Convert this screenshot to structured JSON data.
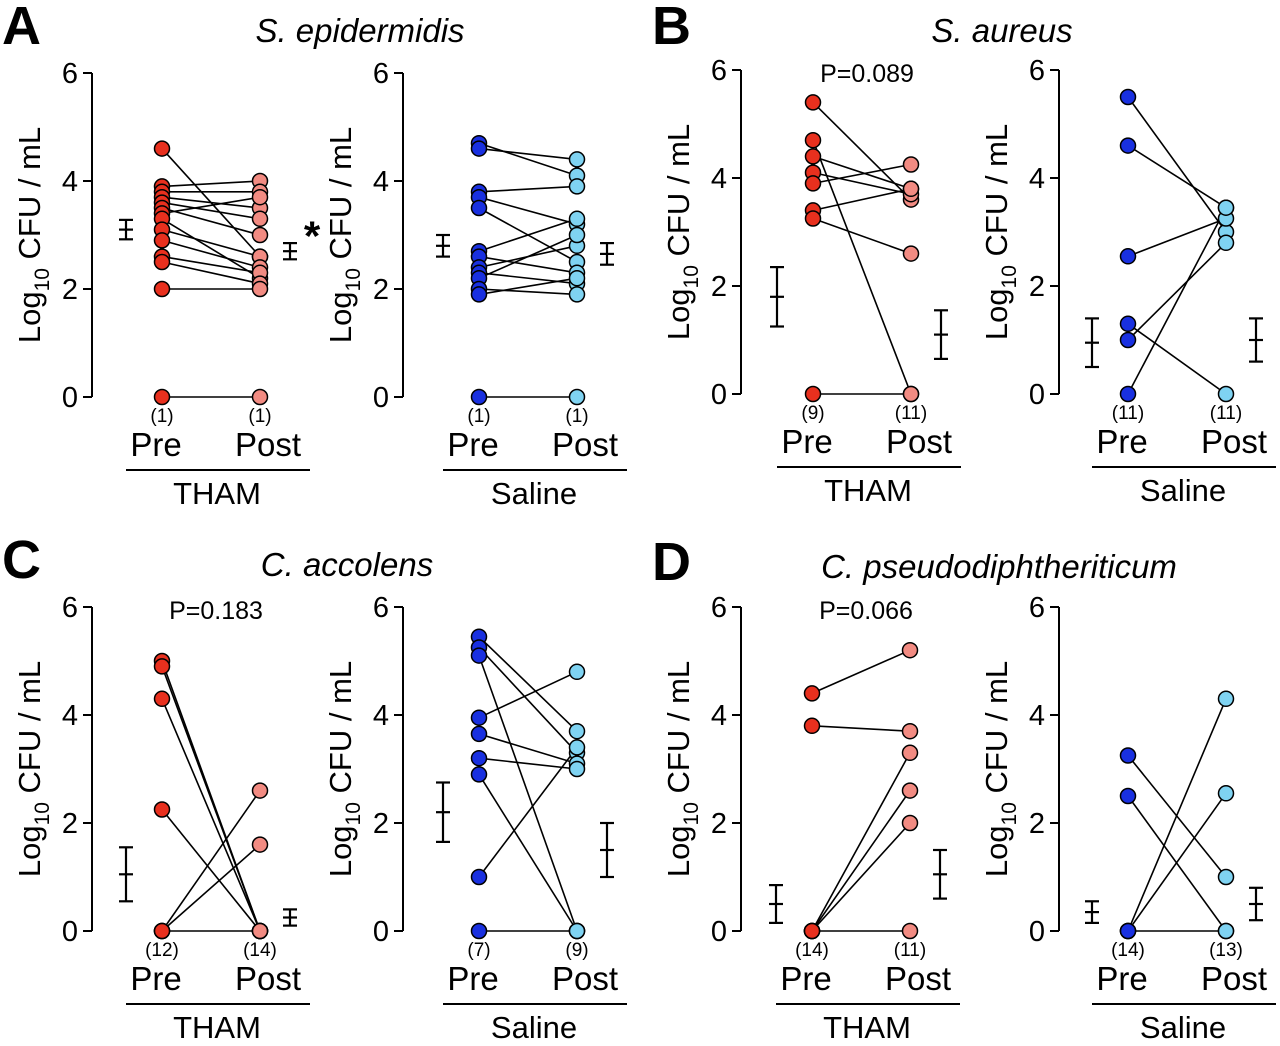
{
  "colors": {
    "tham_pre": "#e8301e",
    "tham_post": "#f28b82",
    "saline_pre": "#1930e0",
    "saline_post": "#7fd3f2",
    "line": "#000000"
  },
  "y_axis_label": {
    "main": "Log",
    "subscript": "10",
    "rest": " CFU / mL"
  },
  "x_tick_labels": [
    "Pre",
    "Post"
  ],
  "chart_data": [
    {
      "panel": "A",
      "title": "S. epidermidis",
      "type": "scatter",
      "ylim": [
        0,
        6
      ],
      "yticks": [
        0,
        2,
        4,
        6
      ],
      "groups": [
        {
          "name": "THAM",
          "counts": [
            "(1)",
            "(1)"
          ],
          "pvalue": "",
          "significance": "*",
          "pairs": [
            [
              4.6,
              2.6
            ],
            [
              3.9,
              4.0
            ],
            [
              3.8,
              3.8
            ],
            [
              3.7,
              3.5
            ],
            [
              3.6,
              3.3
            ],
            [
              3.5,
              3.0
            ],
            [
              3.4,
              3.7
            ],
            [
              3.3,
              2.2
            ],
            [
              3.1,
              2.6
            ],
            [
              2.9,
              2.4
            ],
            [
              2.6,
              2.3
            ],
            [
              2.5,
              2.1
            ],
            [
              2.0,
              2.0
            ],
            [
              0,
              0
            ]
          ],
          "pre_mean_sem": [
            3.1,
            0.18
          ],
          "post_mean_sem": [
            2.7,
            0.15
          ]
        },
        {
          "name": "Saline",
          "counts": [
            "(1)",
            "(1)"
          ],
          "pvalue": "",
          "significance": "",
          "pairs": [
            [
              4.7,
              4.1
            ],
            [
              4.6,
              4.4
            ],
            [
              3.8,
              3.9
            ],
            [
              3.7,
              3.2
            ],
            [
              3.5,
              2.5
            ],
            [
              2.7,
              3.3
            ],
            [
              2.6,
              2.3
            ],
            [
              2.4,
              2.8
            ],
            [
              2.3,
              2.1
            ],
            [
              2.2,
              3.0
            ],
            [
              2.0,
              1.9
            ],
            [
              1.9,
              2.2
            ],
            [
              0,
              0
            ]
          ],
          "pre_mean_sem": [
            2.8,
            0.2
          ],
          "post_mean_sem": [
            2.65,
            0.2
          ]
        }
      ]
    },
    {
      "panel": "B",
      "title": "S. aureus",
      "type": "scatter",
      "ylim": [
        0,
        6
      ],
      "yticks": [
        0,
        2,
        4,
        6
      ],
      "groups": [
        {
          "name": "THAM",
          "counts": [
            "(9)",
            "(11)"
          ],
          "pvalue": "P=0.089",
          "significance": "",
          "pairs": [
            [
              5.4,
              3.6
            ],
            [
              4.7,
              0
            ],
            [
              4.4,
              3.8
            ],
            [
              4.1,
              3.7
            ],
            [
              3.9,
              4.25
            ],
            [
              3.4,
              3.8
            ],
            [
              3.25,
              2.6
            ],
            [
              0,
              0
            ]
          ],
          "pre_mean_sem": [
            1.8,
            0.55
          ],
          "post_mean_sem": [
            1.1,
            0.45
          ]
        },
        {
          "name": "Saline",
          "counts": [
            "(11)",
            "(11)"
          ],
          "pvalue": "",
          "significance": "",
          "pairs": [
            [
              5.5,
              3.0
            ],
            [
              4.6,
              3.45
            ],
            [
              2.55,
              3.25
            ],
            [
              1.3,
              0
            ],
            [
              1.0,
              2.8
            ],
            [
              0,
              3.45
            ]
          ],
          "pre_mean_sem": [
            0.95,
            0.45
          ],
          "post_mean_sem": [
            1.0,
            0.4
          ]
        }
      ]
    },
    {
      "panel": "C",
      "title": "C. accolens",
      "type": "scatter",
      "ylim": [
        0,
        6
      ],
      "yticks": [
        0,
        2,
        4,
        6
      ],
      "groups": [
        {
          "name": "THAM",
          "counts": [
            "(12)",
            "(14)"
          ],
          "pvalue": "P=0.183",
          "significance": "",
          "pairs": [
            [
              5.0,
              0
            ],
            [
              4.9,
              0
            ],
            [
              4.3,
              0
            ],
            [
              2.25,
              0
            ],
            [
              0,
              2.6
            ],
            [
              0,
              1.6
            ],
            [
              0,
              0
            ]
          ],
          "pre_mean_sem": [
            1.05,
            0.5
          ],
          "post_mean_sem": [
            0.25,
            0.15
          ]
        },
        {
          "name": "Saline",
          "counts": [
            "(7)",
            "(9)"
          ],
          "pvalue": "",
          "significance": "",
          "pairs": [
            [
              5.45,
              3.7
            ],
            [
              5.25,
              3.3
            ],
            [
              5.1,
              0
            ],
            [
              3.95,
              4.8
            ],
            [
              3.65,
              3.1
            ],
            [
              3.2,
              3.0
            ],
            [
              2.9,
              0
            ],
            [
              1.0,
              3.4
            ],
            [
              0,
              0
            ]
          ],
          "pre_mean_sem": [
            2.2,
            0.55
          ],
          "post_mean_sem": [
            1.5,
            0.5
          ]
        }
      ]
    },
    {
      "panel": "D",
      "title": "C. pseudodiphtheriticum",
      "type": "scatter",
      "ylim": [
        0,
        6
      ],
      "yticks": [
        0,
        2,
        4,
        6
      ],
      "groups": [
        {
          "name": "THAM",
          "counts": [
            "(14)",
            "(11)"
          ],
          "pvalue": "P=0.066",
          "significance": "",
          "pairs": [
            [
              4.4,
              5.2
            ],
            [
              3.8,
              3.7
            ],
            [
              0,
              3.3
            ],
            [
              0,
              2.6
            ],
            [
              0,
              2.0
            ],
            [
              0,
              0
            ]
          ],
          "pre_mean_sem": [
            0.5,
            0.35
          ],
          "post_mean_sem": [
            1.05,
            0.45
          ]
        },
        {
          "name": "Saline",
          "counts": [
            "(14)",
            "(13)"
          ],
          "pvalue": "",
          "significance": "",
          "pairs": [
            [
              3.25,
              1.0
            ],
            [
              2.5,
              0
            ],
            [
              0,
              4.3
            ],
            [
              0,
              2.55
            ],
            [
              0,
              0
            ]
          ],
          "pre_mean_sem": [
            0.35,
            0.2
          ],
          "post_mean_sem": [
            0.5,
            0.3
          ]
        }
      ]
    }
  ]
}
